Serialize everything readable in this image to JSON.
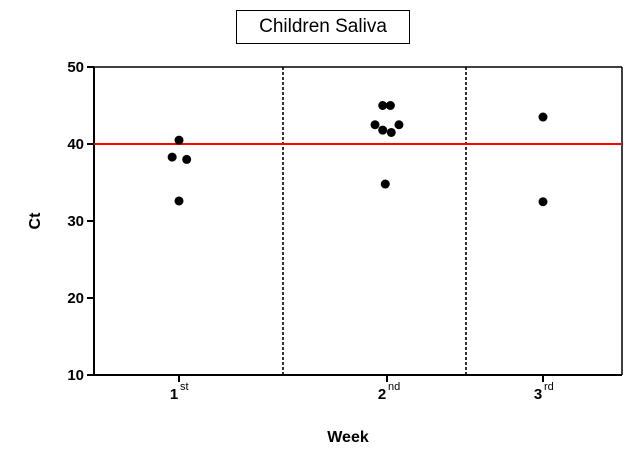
{
  "chart_data": {
    "type": "scatter",
    "title": "Children Saliva",
    "xlabel": "Week",
    "ylabel": "Ct",
    "ylim": [
      10,
      50
    ],
    "yticks": [
      "10",
      "20",
      "30",
      "40",
      "50"
    ],
    "categories": [
      {
        "main": "1",
        "sup": "st"
      },
      {
        "main": "2",
        "sup": "nd"
      },
      {
        "main": "3",
        "sup": "rd"
      }
    ],
    "threshold": {
      "value": 40,
      "color": "#ff0000"
    },
    "group_separators": "dashed",
    "grid": false,
    "point_color": "#000000",
    "points": [
      {
        "category": 0,
        "offset": -0.08,
        "y": 38.3
      },
      {
        "category": 0,
        "offset": 0.0,
        "y": 40.5
      },
      {
        "category": 0,
        "offset": 0.09,
        "y": 38.0
      },
      {
        "category": 0,
        "offset": 0.0,
        "y": 32.6
      },
      {
        "category": 1,
        "offset": -0.14,
        "y": 42.5
      },
      {
        "category": 1,
        "offset": -0.05,
        "y": 45.0
      },
      {
        "category": 1,
        "offset": 0.04,
        "y": 45.0
      },
      {
        "category": 1,
        "offset": -0.05,
        "y": 41.8
      },
      {
        "category": 1,
        "offset": 0.05,
        "y": 41.5
      },
      {
        "category": 1,
        "offset": 0.14,
        "y": 42.5
      },
      {
        "category": 1,
        "offset": -0.02,
        "y": 34.8
      },
      {
        "category": 2,
        "offset": 0.0,
        "y": 43.5
      },
      {
        "category": 2,
        "offset": 0.0,
        "y": 32.5
      }
    ]
  }
}
